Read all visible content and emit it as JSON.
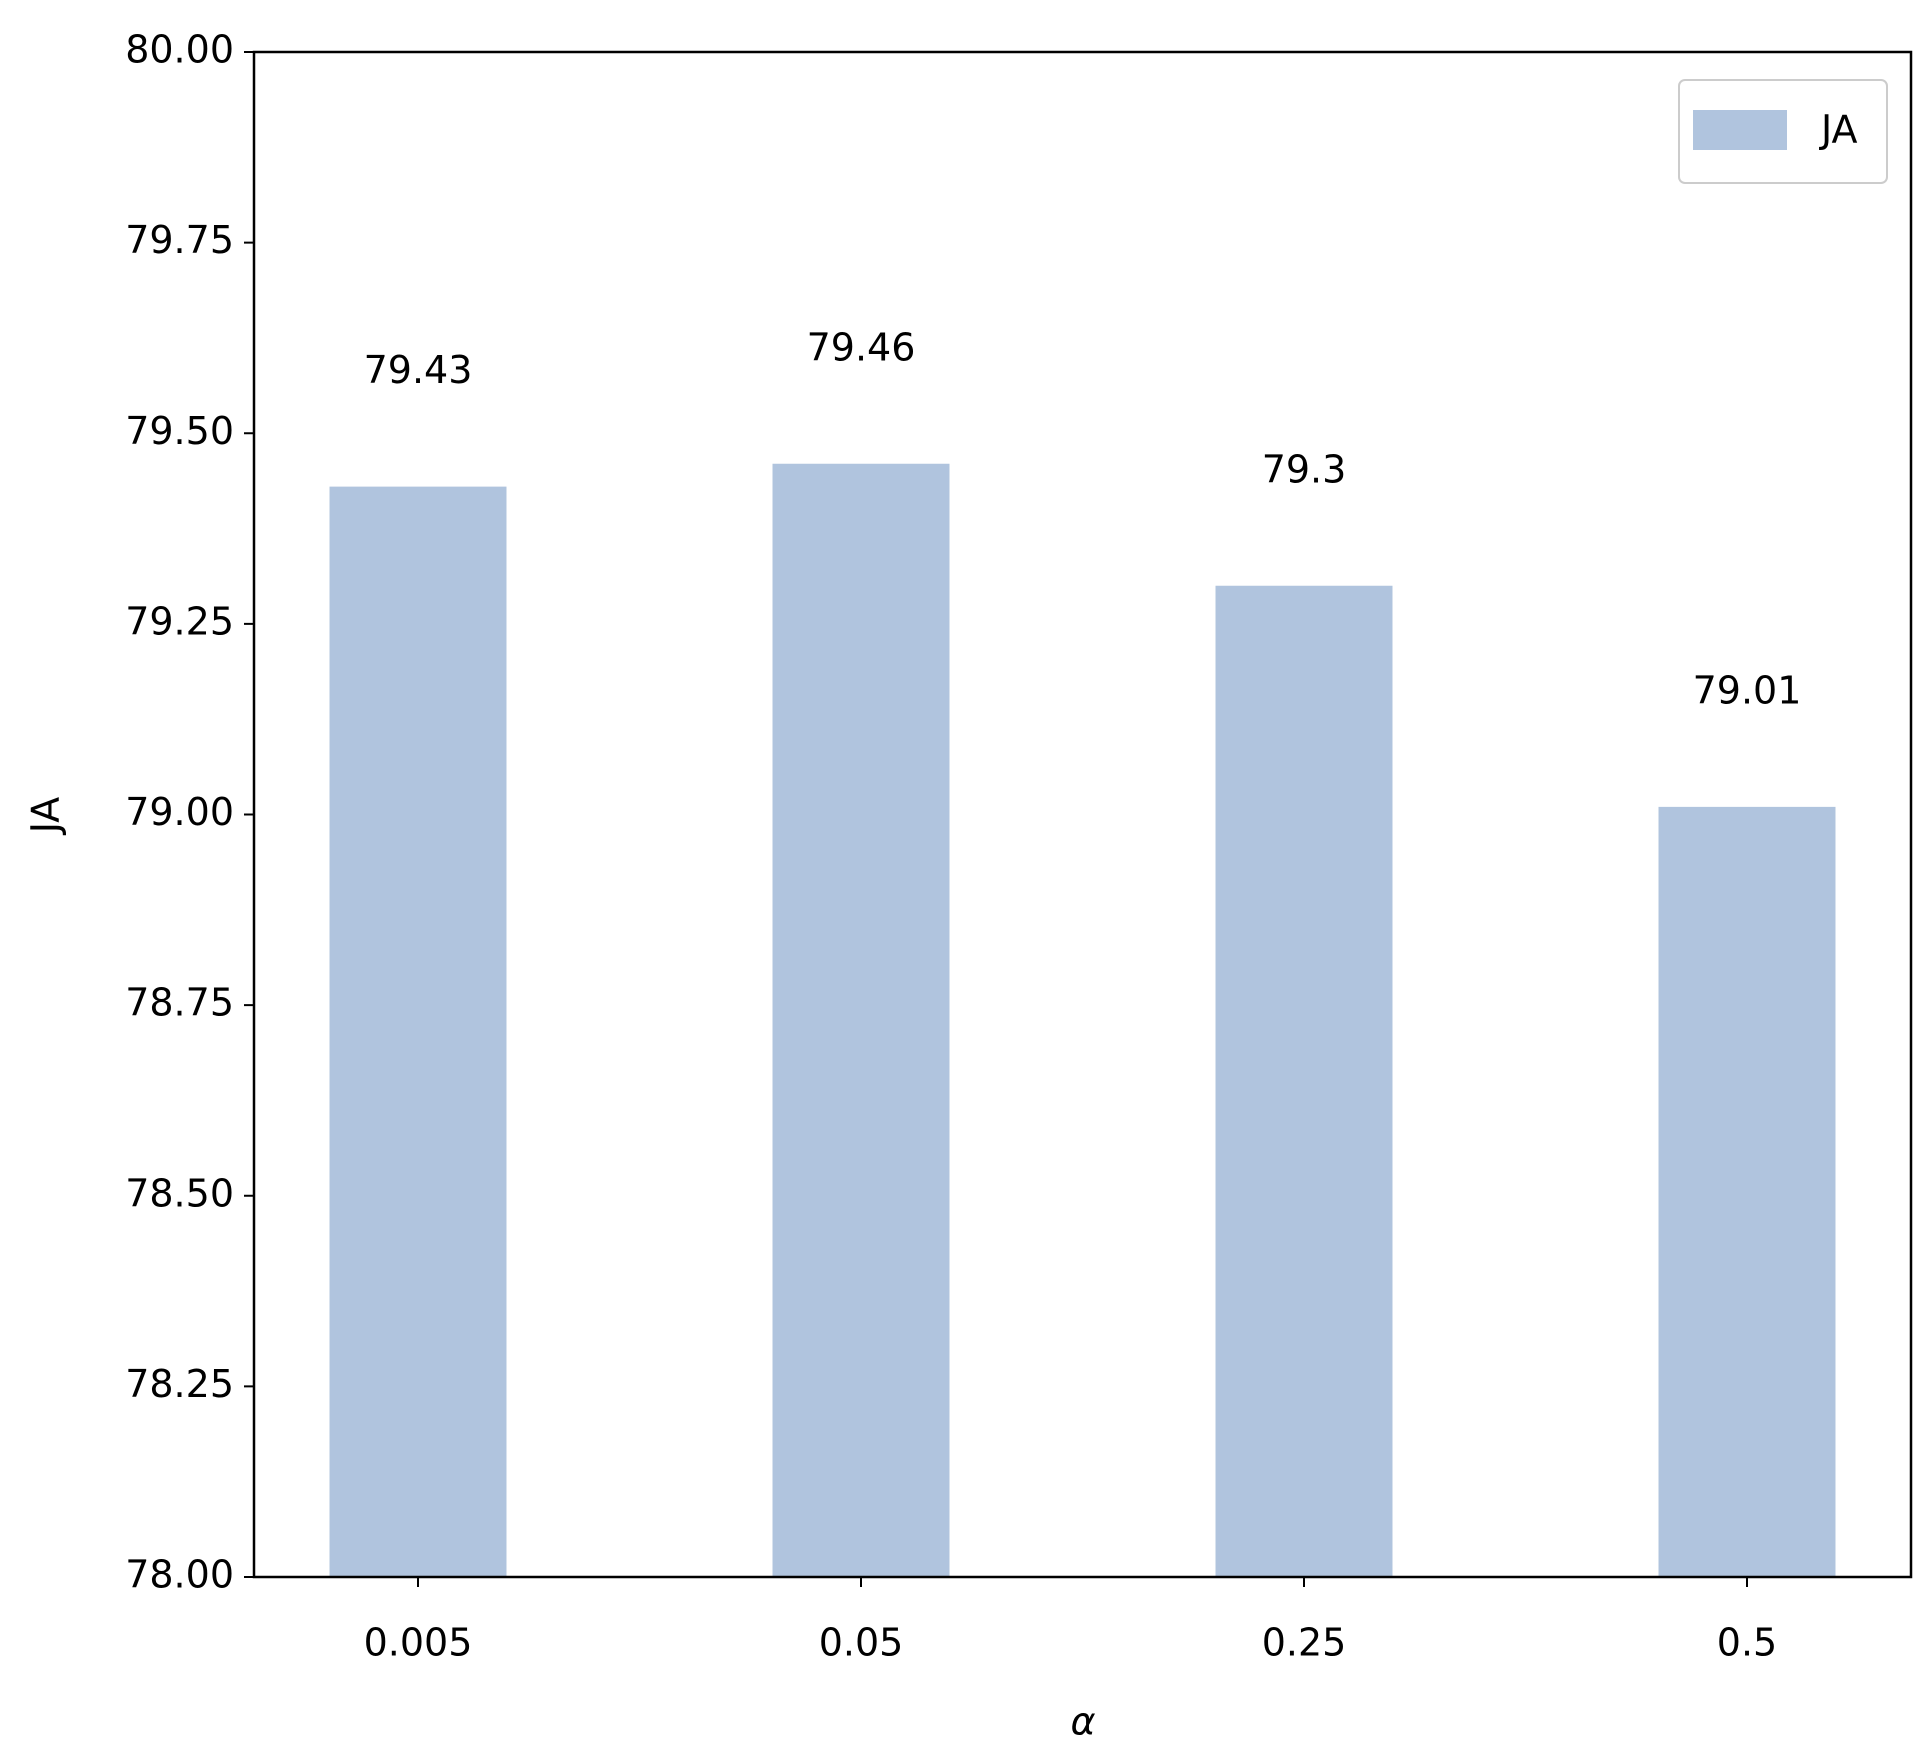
{
  "chart_data": {
    "type": "bar",
    "categories": [
      "0.005",
      "0.05",
      "0.25",
      "0.5"
    ],
    "series": [
      {
        "name": "JA",
        "color": "#b0c4de",
        "values": [
          79.43,
          79.46,
          79.3,
          79.01
        ]
      }
    ],
    "xlabel": "α",
    "ylabel": "JA",
    "ylim": [
      78,
      80
    ],
    "yticks": [
      {
        "value": 78,
        "label": "78.00"
      },
      78.25,
      {
        "value": 78.5,
        "label": "78.50"
      },
      78.75,
      {
        "value": 79,
        "label": "79.00"
      },
      79.25,
      {
        "value": 79.5,
        "label": "79.50"
      },
      79.75,
      {
        "value": 80,
        "label": "80.00"
      }
    ],
    "legend": "upper right",
    "grid": false
  }
}
